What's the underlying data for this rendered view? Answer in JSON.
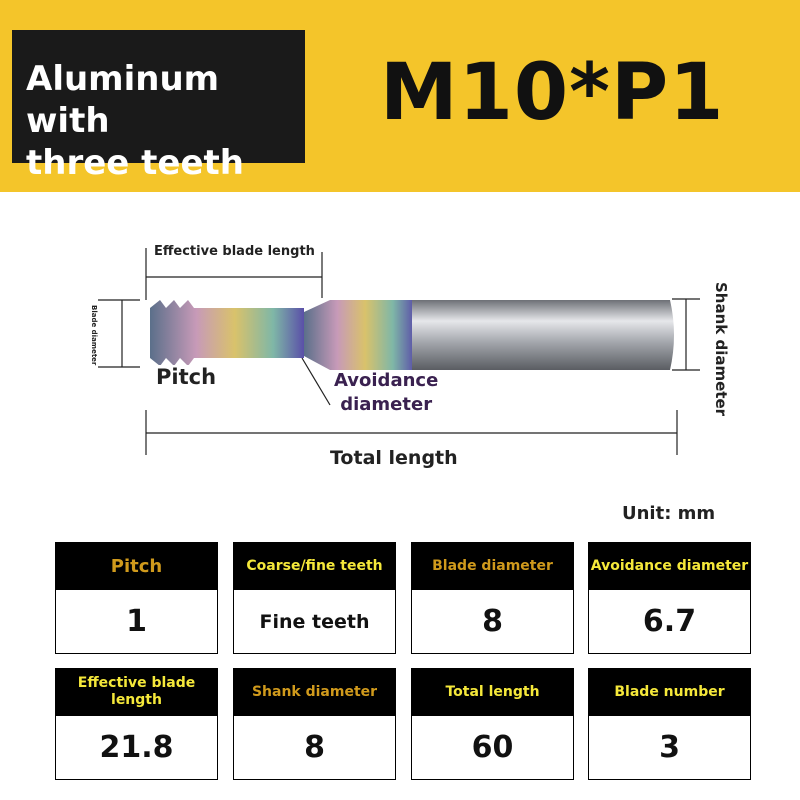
{
  "header": {
    "title_line1": "Aluminum with",
    "title_line2": "three teeth",
    "model": "M10*P1"
  },
  "diagram": {
    "effective_blade_length": "Effective blade length",
    "blade_diameter_line1": "Blade",
    "blade_diameter_line2": "diameter",
    "pitch": "Pitch",
    "avoidance_line1": "Avoidance",
    "avoidance_line2": "diameter",
    "shank_diameter": "Shank diameter",
    "total_length": "Total length"
  },
  "unit": "Unit: mm",
  "specs": [
    {
      "label": "Pitch",
      "value": "1",
      "color": "#d09a1c"
    },
    {
      "label": "Coarse/fine teeth",
      "value": "Fine teeth",
      "color": "#f5e83a"
    },
    {
      "label": "Blade diameter",
      "value": "8",
      "color": "#d09a1c"
    },
    {
      "label": "Avoidance diameter",
      "value": "6.7",
      "color": "#f5e83a"
    },
    {
      "label": "Effective blade length",
      "value": "21.8",
      "color": "#f5e83a"
    },
    {
      "label": "Shank diameter",
      "value": "8",
      "color": "#d09a1c"
    },
    {
      "label": "Total length",
      "value": "60",
      "color": "#f5e83a"
    },
    {
      "label": "Blade number",
      "value": "3",
      "color": "#f5e83a"
    }
  ]
}
